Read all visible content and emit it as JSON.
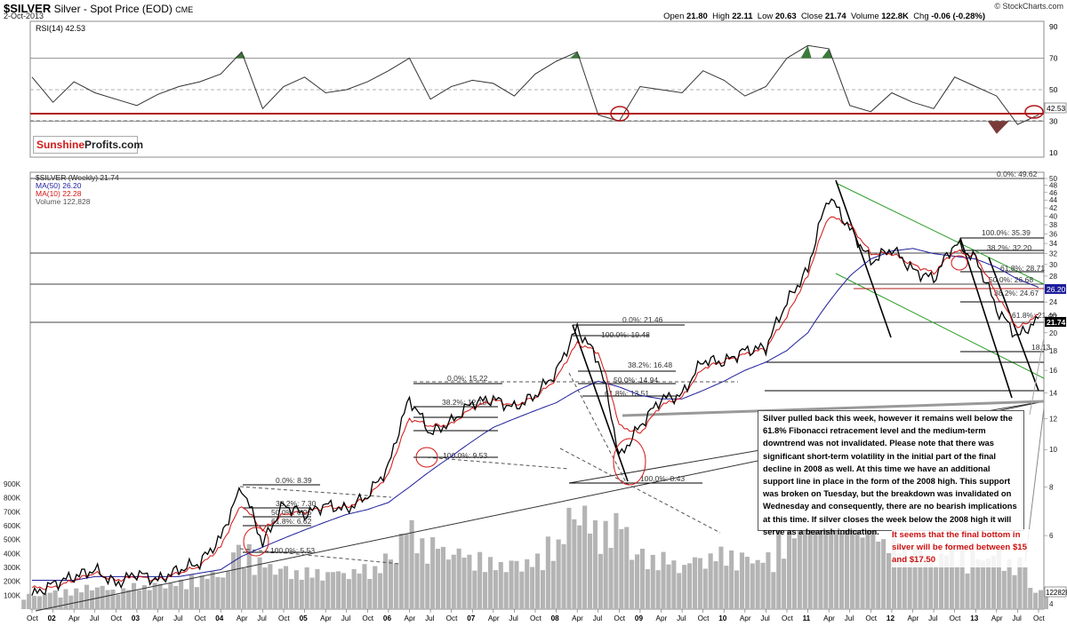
{
  "header": {
    "symbol": "$SILVER",
    "name": "Silver - Spot Price (EOD)",
    "exchange": "CME",
    "date": "2-Oct-2013",
    "open_label": "Open",
    "open": "21.80",
    "high_label": "High",
    "high": "22.11",
    "low_label": "Low",
    "low": "20.63",
    "close_label": "Close",
    "close": "21.74",
    "volume_label": "Volume",
    "volume": "122.8K",
    "chg_label": "Chg",
    "chg": "-0.06 (-0.28%)",
    "credit": "© StockCharts.com"
  },
  "logo": {
    "part1": "Sunshine",
    "part2": "Profits.com"
  },
  "callout": "Silver pulled back this week, however it remains well below the 61.8% Fibonacci retracement level and the medium-term downtrend was not invalidated. Please note that there was significant short-term volatility in the initial part of the final decline in 2008 as well. At this time we have an additional support line in place in the form of the 2008 high. This support was broken on Tuesday, but the breakdown was invalidated on Wednesday and consequently, there are no bearish implications at this time. If silver closes the week below the 2008 high it will serve as a bearish indication.",
  "note": "It seems that the final bottom in silver will be formed between $15 and $17.50",
  "colors": {
    "price": "#000000",
    "ma50": "#1e1e9c",
    "ma10": "#d31414",
    "volume": "#b4b4b4",
    "rsi_fill": "#3a7a3a",
    "rsi_low_fill": "#7a3a3a",
    "support": "#b01818",
    "trend": "#2aa02a"
  },
  "chart_data": [
    {
      "type": "line",
      "panel": "RSI",
      "legend": "RSI(14) 42.53",
      "last_label": "42.53",
      "ylim": [
        10,
        90
      ],
      "ticks": [
        "90",
        "70",
        "50",
        "30",
        "10"
      ],
      "x": [
        "Oct 01",
        "Jan 02",
        "Apr 02",
        "Jul 02",
        "Oct 02",
        "Jan 03",
        "Apr 03",
        "Jul 03",
        "Oct 03",
        "Jan 04",
        "Apr 04",
        "Jul 04",
        "Oct 04",
        "Jan 05",
        "Apr 05",
        "Jul 05",
        "Oct 05",
        "Jan 06",
        "Apr 06",
        "Jul 06",
        "Oct 06",
        "Jan 07",
        "Apr 07",
        "Jul 07",
        "Oct 07",
        "Jan 08",
        "Apr 08",
        "Jul 08",
        "Oct 08",
        "Jan 09",
        "Apr 09",
        "Jul 09",
        "Oct 09",
        "Jan 10",
        "Apr 10",
        "Jul 10",
        "Oct 10",
        "Jan 11",
        "Apr 11",
        "Jul 11",
        "Oct 11",
        "Jan 12",
        "Apr 12",
        "Jul 12",
        "Oct 12",
        "Jan 13",
        "Apr 13",
        "Jul 13",
        "Oct 13"
      ],
      "values": [
        58,
        42,
        55,
        48,
        44,
        40,
        47,
        52,
        55,
        60,
        74,
        38,
        52,
        58,
        48,
        50,
        55,
        62,
        70,
        44,
        52,
        56,
        54,
        46,
        60,
        68,
        74,
        34,
        30,
        52,
        50,
        48,
        62,
        56,
        46,
        52,
        70,
        78,
        76,
        40,
        36,
        48,
        42,
        38,
        58,
        52,
        46,
        28,
        34
      ],
      "reference_lines": [
        70,
        50,
        30
      ]
    },
    {
      "type": "line",
      "panel": "Price",
      "legend": [
        "$SILVER (Weekly) 21.74",
        "MA(50) 26.20",
        "MA(10) 22.28",
        "Volume 122,828"
      ],
      "yscale": "log",
      "ylim": [
        4,
        50
      ],
      "ticks": [
        "50",
        "48",
        "46",
        "44",
        "42",
        "40",
        "38",
        "36",
        "34",
        "32",
        "30",
        "28",
        "26",
        "24",
        "22",
        "20",
        "18",
        "16",
        "14",
        "12",
        "10",
        "8",
        "6",
        "4"
      ],
      "x": [
        "Oct 01",
        "Jan 02",
        "Apr 02",
        "Jul 02",
        "Oct 02",
        "Jan 03",
        "Apr 03",
        "Jul 03",
        "Oct 03",
        "Jan 04",
        "Apr 04",
        "Jul 04",
        "Oct 04",
        "Jan 05",
        "Apr 05",
        "Jul 05",
        "Oct 05",
        "Jan 06",
        "Apr 06",
        "Jul 06",
        "Oct 06",
        "Jan 07",
        "Apr 07",
        "Jul 07",
        "Oct 07",
        "Jan 08",
        "Apr 08",
        "Jul 08",
        "Oct 08",
        "Jan 09",
        "Apr 09",
        "Jul 09",
        "Oct 09",
        "Jan 10",
        "Apr 10",
        "Jul 10",
        "Oct 10",
        "Jan 11",
        "Apr 11",
        "Jul 11",
        "Oct 11",
        "Jan 12",
        "Apr 12",
        "Jul 12",
        "Oct 12",
        "Jan 13",
        "Apr 13",
        "Jul 13",
        "Oct 13"
      ],
      "x_tick_labels": [
        "Oct",
        "02",
        "Apr",
        "Jul",
        "Oct",
        "03",
        "Apr",
        "Jul",
        "Oct",
        "04",
        "Apr",
        "Jul",
        "Oct",
        "05",
        "Apr",
        "Jul",
        "Oct",
        "06",
        "Apr",
        "Jul",
        "Oct",
        "07",
        "Apr",
        "Jul",
        "Oct",
        "08",
        "Apr",
        "Jul",
        "Oct",
        "09",
        "Apr",
        "Jul",
        "Oct",
        "10",
        "Apr",
        "Jul",
        "Oct",
        "11",
        "Apr",
        "Jul",
        "Oct",
        "12",
        "Apr",
        "Jul",
        "Oct",
        "13",
        "Apr",
        "Jul",
        "Oct"
      ],
      "series": [
        {
          "name": "$SILVER",
          "values": [
            4.2,
            4.5,
            4.7,
            4.9,
            4.5,
            4.8,
            4.6,
            4.9,
            5.1,
            5.9,
            8.0,
            5.7,
            7.2,
            6.8,
            7.2,
            7.0,
            7.6,
            9.0,
            13.5,
            11.0,
            11.8,
            13.2,
            13.5,
            12.8,
            13.8,
            15.8,
            20.5,
            17.0,
            9.5,
            11.5,
            13.5,
            13.8,
            17.0,
            16.8,
            18.0,
            18.3,
            24.0,
            29.0,
            45.0,
            37.0,
            30.5,
            33.0,
            29.0,
            27.5,
            34.0,
            31.0,
            23.0,
            19.5,
            21.74
          ]
        },
        {
          "name": "MA(50)",
          "values": [
            4.6,
            4.6,
            4.6,
            4.7,
            4.7,
            4.7,
            4.7,
            4.7,
            4.8,
            4.9,
            5.3,
            5.6,
            5.9,
            6.2,
            6.5,
            6.8,
            7.0,
            7.3,
            8.0,
            8.8,
            9.6,
            10.5,
            11.4,
            12.0,
            12.6,
            13.2,
            14.2,
            15.0,
            14.5,
            13.8,
            13.5,
            13.5,
            14.2,
            15.0,
            16.0,
            16.8,
            18.0,
            20.0,
            24.0,
            28.0,
            31.0,
            32.5,
            33.0,
            32.0,
            31.5,
            31.0,
            29.5,
            27.5,
            26.2
          ]
        },
        {
          "name": "MA(10)",
          "values": [
            4.4,
            4.4,
            4.6,
            4.8,
            4.6,
            4.7,
            4.6,
            4.8,
            5.0,
            5.6,
            7.2,
            6.2,
            6.8,
            6.9,
            7.1,
            7.1,
            7.5,
            8.6,
            12.0,
            11.5,
            11.6,
            12.8,
            13.4,
            13.0,
            13.6,
            15.2,
            18.8,
            17.8,
            11.5,
            11.0,
            13.0,
            13.6,
            16.2,
            16.9,
            17.6,
            18.2,
            22.0,
            28.0,
            40.0,
            38.0,
            32.0,
            32.0,
            30.0,
            28.5,
            32.5,
            31.5,
            25.0,
            20.5,
            22.28
          ]
        }
      ],
      "volume_ticks": [
        "900K",
        "800K",
        "700K",
        "600K",
        "500K",
        "400K",
        "300K",
        "200K",
        "100K"
      ],
      "volume_values": [
        90,
        110,
        120,
        140,
        120,
        150,
        160,
        170,
        200,
        220,
        380,
        300,
        260,
        240,
        230,
        230,
        260,
        330,
        520,
        420,
        360,
        330,
        300,
        300,
        320,
        420,
        600,
        520,
        560,
        360,
        330,
        280,
        320,
        360,
        340,
        330,
        480,
        560,
        820,
        640,
        560,
        440,
        380,
        320,
        380,
        340,
        360,
        300,
        122.8
      ],
      "volume_last_label": "122828",
      "fibonacci": [
        {
          "group": "2008",
          "levels": [
            "0.0%: 21.46",
            "100.0%: 19.48",
            "38.2%: 16.48",
            "50.0%: 14.94",
            "61.8%: 13.51",
            "100.0%: 8.43"
          ]
        },
        {
          "group": "2006",
          "levels": [
            "0.0%: 15.22",
            "38.2%: 12.18",
            "100.0%: 9.53"
          ]
        },
        {
          "group": "2004",
          "levels": [
            "0.0%: 8.39",
            "38.2%: 7.30",
            "50.0%: 6.96",
            "61.8%: 6.62",
            "100.0%: 5.53"
          ]
        },
        {
          "group": "2011",
          "levels": [
            "0.0%: 49.62",
            "100.0%: 35.39",
            "38.2%: 32.20",
            "61.8%: 28.71",
            "50.0%: 26.68",
            "38.2%: 24.67",
            "61.8%: 21.46",
            "18.13"
          ]
        }
      ],
      "price_last_label": "21.74",
      "ma50_last_label": "26.20"
    }
  ]
}
